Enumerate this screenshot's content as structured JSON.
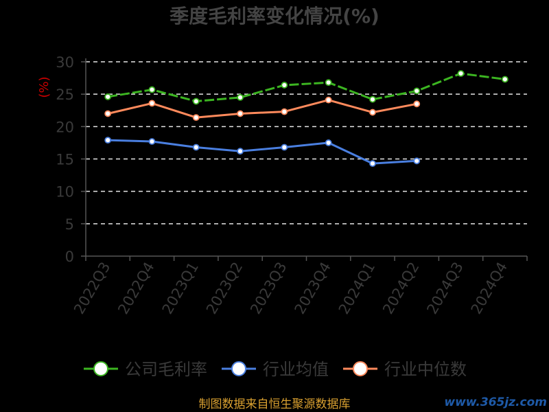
{
  "chart_data": {
    "type": "line",
    "title": "季度毛利率变化情况(%)",
    "ylabel": "(%)",
    "xlabel": "",
    "categories": [
      "2022Q3",
      "2022Q4",
      "2023Q1",
      "2023Q2",
      "2023Q3",
      "2023Q4",
      "2024Q1",
      "2024Q2",
      "2024Q3",
      "2024Q4"
    ],
    "ylim": [
      0,
      30
    ],
    "yticks": [
      0,
      5,
      10,
      15,
      20,
      25,
      30
    ],
    "grid": true,
    "legend_position": "bottom",
    "series": [
      {
        "name": "公司毛利率",
        "color": "#3cb521",
        "values": [
          24.6,
          25.7,
          23.9,
          24.5,
          26.4,
          26.8,
          24.2,
          25.5,
          28.2,
          27.3
        ]
      },
      {
        "name": "行业均值",
        "color": "#4a7fe0",
        "values": [
          17.9,
          17.7,
          16.8,
          16.2,
          16.8,
          17.5,
          14.3,
          14.7,
          null,
          null
        ]
      },
      {
        "name": "行业中位数",
        "color": "#ff8a5c",
        "values": [
          22.0,
          23.6,
          21.4,
          22.0,
          22.3,
          24.1,
          22.2,
          23.5,
          null,
          null
        ]
      }
    ]
  },
  "footer": {
    "source": "制图数据来自恒生聚源数据库",
    "watermark": "www.365jz.com"
  }
}
